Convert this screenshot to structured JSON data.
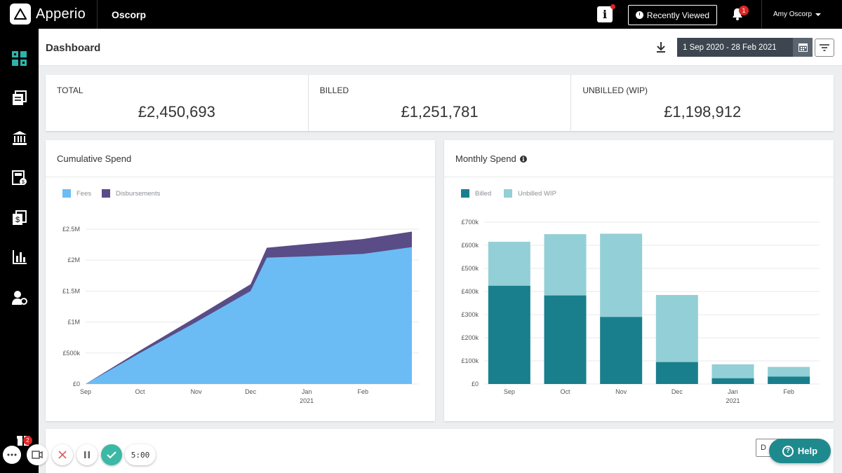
{
  "app": {
    "name": "Apperio",
    "org": "Oscorp"
  },
  "topbar": {
    "info_label": "i",
    "recently_viewed": "Recently Viewed",
    "notifications_count": "1",
    "user_name": "Amy Oscorp"
  },
  "sidebar": {
    "items": [
      {
        "icon": "dashboard-icon"
      },
      {
        "icon": "documents-icon"
      },
      {
        "icon": "bank-icon"
      },
      {
        "icon": "calculator-icon"
      },
      {
        "icon": "invoice-icon"
      },
      {
        "icon": "bar-chart-icon"
      },
      {
        "icon": "user-settings-icon"
      }
    ],
    "gift_badge": "2"
  },
  "header": {
    "title": "Dashboard",
    "date_range": "1 Sep 2020 - 28 Feb 2021"
  },
  "kpis": [
    {
      "label": "TOTAL",
      "value": "£2,450,693"
    },
    {
      "label": "BILLED",
      "value": "£1,251,781"
    },
    {
      "label": "UNBILLED (WIP)",
      "value": "£1,198,912"
    }
  ],
  "cumulative": {
    "title": "Cumulative Spend"
  },
  "monthly": {
    "title": "Monthly Spend",
    "info": "i"
  },
  "bottom": {
    "button_label": "D"
  },
  "help": {
    "label": "Help",
    "icon_char": "?"
  },
  "recorder": {
    "timer": "5:00"
  },
  "colors": {
    "fees": "#6bbcf4",
    "disbursements": "#5a4c86",
    "billed": "#1a7f8c",
    "unbilled": "#93cfd6",
    "help": "#1f8a8e"
  },
  "chart_data": [
    {
      "type": "area",
      "title": "Cumulative Spend",
      "x": [
        "1 Sep",
        "1 Oct",
        "1 Nov",
        "1 Dec",
        "10 Dec",
        "1 Jan",
        "1 Feb",
        "28 Feb"
      ],
      "x_tick_labels": [
        "Sep",
        "Oct",
        "Nov",
        "Dec",
        "Jan",
        "Feb"
      ],
      "x_sublabel": "2021",
      "y_tick_labels": [
        "£0",
        "£500k",
        "£1M",
        "£1.5M",
        "£2M",
        "£2.5M"
      ],
      "ylim": [
        0,
        2500000
      ],
      "series": [
        {
          "name": "Fees",
          "values": [
            0,
            500000,
            1000000,
            1500000,
            2040000,
            2060000,
            2100000,
            2210000
          ]
        },
        {
          "name": "Disbursements",
          "values": [
            0,
            40000,
            80000,
            110000,
            160000,
            200000,
            240000,
            250000
          ]
        }
      ],
      "stacked": true,
      "legend": "top-left",
      "grid": true
    },
    {
      "type": "bar",
      "title": "Monthly Spend",
      "categories": [
        "Sep",
        "Oct",
        "Nov",
        "Dec",
        "Jan",
        "Feb"
      ],
      "x_sublabel": "2021",
      "y_tick_labels": [
        "£0",
        "£100k",
        "£200k",
        "£300k",
        "£400k",
        "£500k",
        "£600k",
        "£700k"
      ],
      "ylim": [
        0,
        700000
      ],
      "series": [
        {
          "name": "Billed",
          "values": [
            425000,
            383000,
            290000,
            95000,
            25000,
            32000
          ]
        },
        {
          "name": "Unbilled WIP",
          "values": [
            190000,
            265000,
            360000,
            290000,
            60000,
            42000
          ]
        }
      ],
      "stacked": true,
      "legend": "top-left",
      "grid": true
    }
  ]
}
